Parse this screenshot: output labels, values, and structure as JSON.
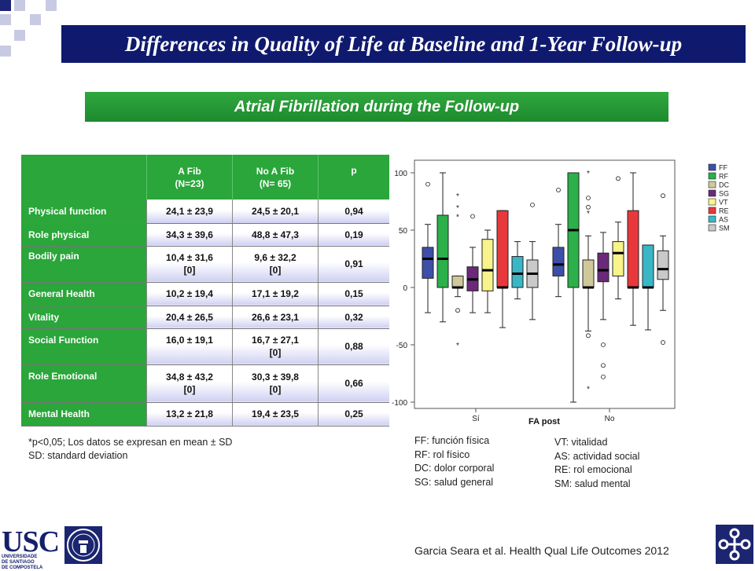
{
  "title": "Differences in Quality of Life at Baseline and 1-Year Follow-up",
  "subtitle": "Atrial Fibrillation during the Follow-up",
  "table": {
    "headers": {
      "group1": "A Fib",
      "group1_n": "(N=23)",
      "group2": "No A Fib",
      "group2_n": "(N= 65)",
      "p": "p"
    },
    "rows": [
      {
        "label": "Physical function",
        "afib": "24,1 ± 23,9",
        "afib_sub": "",
        "no_afib": "24,5 ± 20,1",
        "no_afib_sub": "",
        "p": "0,94"
      },
      {
        "label": "Role physical",
        "afib": "34,3 ± 39,6",
        "afib_sub": "",
        "no_afib": "48,8 ± 47,3",
        "no_afib_sub": "",
        "p": "0,19"
      },
      {
        "label": "Bodily pain",
        "afib": "10,4 ± 31,6",
        "afib_sub": "[0]",
        "no_afib": "9,6 ± 32,2",
        "no_afib_sub": "[0]",
        "p": "0,91"
      },
      {
        "label": "General Health",
        "afib": "10,2 ± 19,4",
        "afib_sub": "",
        "no_afib": "17,1 ± 19,2",
        "no_afib_sub": "",
        "p": "0,15"
      },
      {
        "label": "Vitality",
        "afib": "20,4 ± 26,5",
        "afib_sub": "",
        "no_afib": "26,6 ± 23,1",
        "no_afib_sub": "",
        "p": "0,32"
      },
      {
        "label": "Social Function",
        "afib": "16,0 ± 19,1",
        "afib_sub": "",
        "no_afib": "16,7 ± 27,1",
        "no_afib_sub": "[0]",
        "p": "0,88"
      },
      {
        "label": "Role Emotional",
        "afib": "34,8 ± 43,2",
        "afib_sub": "[0]",
        "no_afib": "30,3 ± 39,8",
        "no_afib_sub": "[0]",
        "p": "0,66"
      },
      {
        "label": "Mental Health",
        "afib": "13,2 ± 21,8",
        "afib_sub": "",
        "no_afib": "19,4 ± 23,5",
        "no_afib_sub": "",
        "p": "0,25"
      }
    ]
  },
  "footnote": {
    "line1": "*p<0,05; Los datos se expresan en mean ± SD",
    "line2": "SD: standard deviation"
  },
  "abbreviations": {
    "col1": [
      "FF: función física",
      "RF: rol físico",
      "DC: dolor corporal",
      "SG: salud general"
    ],
    "col2": [
      "VT: vitalidad",
      "AS: actividad social",
      "RE: rol emocional",
      "SM: salud mental"
    ]
  },
  "citation": "Garcia Seara et al. Health Qual Life Outcomes 2012",
  "logo_text": {
    "usc": "USC",
    "university_line1": "UNIVERSIDADE",
    "university_line2": "DE SANTIAGO",
    "university_line3": "DE COMPOSTELA"
  },
  "colors": {
    "title_bg": "#0f1a6e",
    "green": "#2aa63a"
  },
  "chart_data": {
    "type": "boxplot",
    "xlabel": "FA post",
    "categories": [
      "Sí",
      "No"
    ],
    "yticks": [
      100,
      50,
      0,
      -50,
      -100
    ],
    "ylim": [
      -105,
      110
    ],
    "legend_position": "right",
    "series": [
      {
        "name": "FF",
        "color": "#3d4fa8",
        "groups": [
          {
            "min": -22,
            "q1": 8,
            "median": 25,
            "q3": 35,
            "max": 55,
            "outliers": [
              90
            ]
          },
          {
            "min": -8,
            "q1": 10,
            "median": 20,
            "q3": 35,
            "max": 55,
            "outliers": [
              85
            ]
          }
        ]
      },
      {
        "name": "RF",
        "color": "#2bb04a",
        "groups": [
          {
            "min": -30,
            "q1": 0,
            "median": 25,
            "q3": 63,
            "max": 100,
            "outliers": []
          },
          {
            "min": -100,
            "q1": 0,
            "median": 50,
            "q3": 100,
            "max": 100,
            "outliers": []
          }
        ]
      },
      {
        "name": "DC",
        "color": "#cfc89a",
        "groups": [
          {
            "min": -8,
            "q1": 0,
            "median": 0,
            "q3": 10,
            "max": 10,
            "outliers": [
              -20
            ],
            "extremes": [
              -50,
              80,
              70,
              62
            ]
          },
          {
            "min": -38,
            "q1": 0,
            "median": 0,
            "q3": 24,
            "max": 45,
            "outliers": [
              -42,
              78,
              70
            ],
            "extremes": [
              -88,
              100,
              65
            ]
          }
        ]
      },
      {
        "name": "SG",
        "color": "#6a2a79",
        "groups": [
          {
            "min": -22,
            "q1": -3,
            "median": 7,
            "q3": 18,
            "max": 35,
            "outliers": [
              62
            ]
          },
          {
            "min": -28,
            "q1": 5,
            "median": 15,
            "q3": 30,
            "max": 48,
            "outliers": [
              -50,
              -68,
              -78
            ]
          }
        ]
      },
      {
        "name": "VT",
        "color": "#f8f38a",
        "groups": [
          {
            "min": -22,
            "q1": -3,
            "median": 15,
            "q3": 42,
            "max": 50,
            "outliers": []
          },
          {
            "min": -10,
            "q1": 10,
            "median": 30,
            "q3": 40,
            "max": 57,
            "outliers": [
              95
            ]
          }
        ]
      },
      {
        "name": "RE",
        "color": "#e8383c",
        "groups": [
          {
            "min": -35,
            "q1": 0,
            "median": 0,
            "q3": 67,
            "max": 67,
            "outliers": []
          },
          {
            "min": -33,
            "q1": 0,
            "median": 0,
            "q3": 67,
            "max": 100,
            "outliers": []
          }
        ]
      },
      {
        "name": "AS",
        "color": "#3ab7c7",
        "groups": [
          {
            "min": -10,
            "q1": 0,
            "median": 12,
            "q3": 27,
            "max": 40,
            "outliers": []
          },
          {
            "min": -37,
            "q1": 0,
            "median": 0,
            "q3": 37,
            "max": 37,
            "outliers": []
          }
        ]
      },
      {
        "name": "SM",
        "color": "#c9c9c9",
        "groups": [
          {
            "min": -28,
            "q1": 0,
            "median": 12,
            "q3": 24,
            "max": 40,
            "outliers": [
              72
            ]
          },
          {
            "min": -20,
            "q1": 7,
            "median": 16,
            "q3": 32,
            "max": 45,
            "outliers": [
              80,
              -48
            ]
          }
        ]
      }
    ]
  }
}
